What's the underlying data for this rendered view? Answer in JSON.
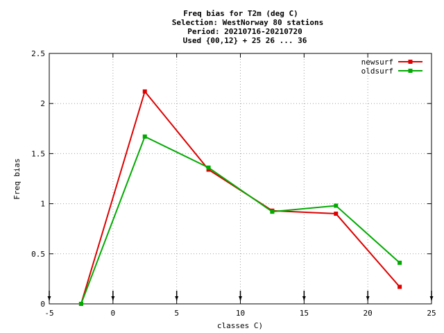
{
  "chart_data": {
    "type": "line",
    "title_lines": [
      "Freq bias  for T2m (deg C)",
      "Selection: WestNorway     80 stations",
      "Period: 20210716-20210720",
      "Used {00,12} + 25 26 ... 36"
    ],
    "xlabel": "classes C)",
    "ylabel": "Freq bias",
    "xlim": [
      -5,
      25
    ],
    "ylim": [
      0,
      2.5
    ],
    "xticks": [
      "-5",
      "0",
      "5",
      "10",
      "15",
      "20",
      "25"
    ],
    "yticks": [
      "0",
      "0.5",
      "1",
      "1.5",
      "2",
      "2.5"
    ],
    "grid": true,
    "legend_position": "top-right",
    "series": [
      {
        "name": "newsurf",
        "color": "#dd0000",
        "x": [
          -2.5,
          2.5,
          7.5,
          12.5,
          17.5,
          22.5
        ],
        "y": [
          0.0,
          2.12,
          1.34,
          0.93,
          0.9,
          0.17
        ]
      },
      {
        "name": "oldsurf",
        "color": "#00aa00",
        "x": [
          -2.5,
          2.5,
          7.5,
          12.5,
          17.5,
          22.5
        ],
        "y": [
          0.0,
          1.67,
          1.36,
          0.92,
          0.98,
          0.41
        ]
      }
    ],
    "bin_markers_x": [
      -5,
      0,
      5,
      10,
      15,
      20,
      25
    ]
  }
}
